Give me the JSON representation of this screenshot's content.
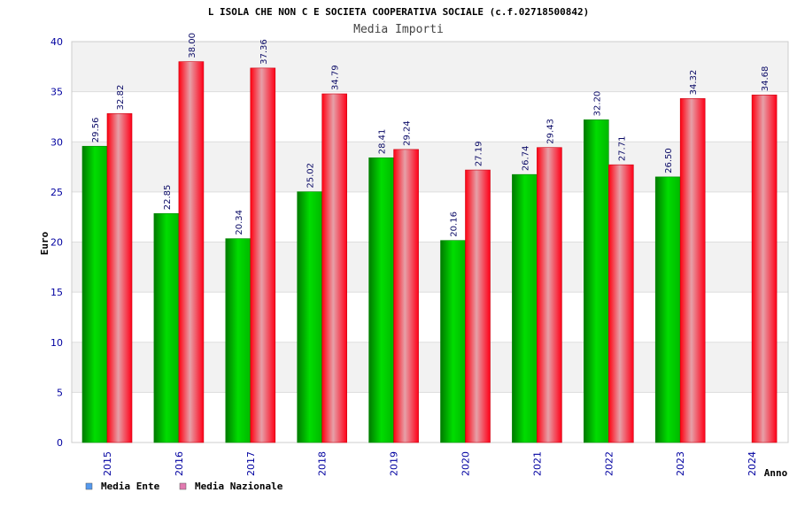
{
  "chart_data": {
    "type": "bar",
    "title": "L ISOLA CHE NON C E SOCIETA COOPERATIVA SOCIALE (c.f.02718500842)",
    "subtitle": "Media Importi",
    "xlabel": "Anno",
    "ylabel": "Euro",
    "ylim": [
      0,
      40
    ],
    "yticks": [
      0,
      5,
      10,
      15,
      20,
      25,
      30,
      35,
      40
    ],
    "grid": true,
    "legend_position": "bottom-left",
    "categories": [
      "2015",
      "2016",
      "2017",
      "2018",
      "2019",
      "2020",
      "2021",
      "2022",
      "2023",
      "2024"
    ],
    "series": [
      {
        "name": "Media Ente",
        "color": "#00b000",
        "legend_color": "#5599ee",
        "values": [
          29.56,
          22.85,
          20.34,
          25.02,
          28.41,
          20.16,
          26.74,
          32.2,
          26.5,
          null
        ],
        "labels": [
          "29.56",
          "22.85",
          "20.34",
          "25.02",
          "28.41",
          "20.16",
          "26.74",
          "32.20",
          "26.50",
          null
        ]
      },
      {
        "name": "Media Nazionale",
        "color": "#ff0018",
        "legend_color": "#e27ab0",
        "values": [
          32.82,
          38.0,
          37.36,
          34.79,
          29.24,
          27.19,
          29.43,
          27.71,
          34.32,
          34.68
        ],
        "labels": [
          "32.82",
          "38.00",
          "37.36",
          "34.79",
          "29.24",
          "27.19",
          "29.43",
          "27.71",
          "34.32",
          "34.68"
        ]
      }
    ]
  }
}
